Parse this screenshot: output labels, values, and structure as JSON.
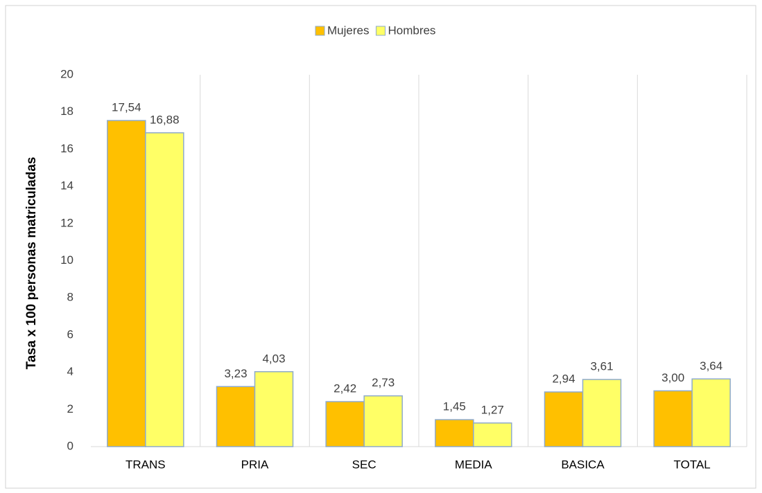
{
  "chart_data": {
    "type": "bar",
    "ylabel": "Tasa x 100 personas matriculadas",
    "categories": [
      "TRANS",
      "PRIA",
      "SEC",
      "MEDIA",
      "BASICA",
      "TOTAL"
    ],
    "series": [
      {
        "name": "Mujeres",
        "color": "#ffc000",
        "values": [
          17.54,
          3.23,
          2.42,
          1.45,
          2.94,
          3.0
        ],
        "value_labels": [
          "17,54",
          "3,23",
          "2,42",
          "1,45",
          "2,94",
          "3,00"
        ]
      },
      {
        "name": "Hombres",
        "color": "#ffff66",
        "values": [
          16.88,
          4.03,
          2.73,
          1.27,
          3.61,
          3.64
        ],
        "value_labels": [
          "16,88",
          "4,03",
          "2,73",
          "1,27",
          "3,61",
          "3,64"
        ]
      }
    ],
    "ylim": [
      0,
      20
    ],
    "yticks": [
      0,
      2,
      4,
      6,
      8,
      10,
      12,
      14,
      16,
      18,
      20
    ],
    "legend": "top"
  }
}
